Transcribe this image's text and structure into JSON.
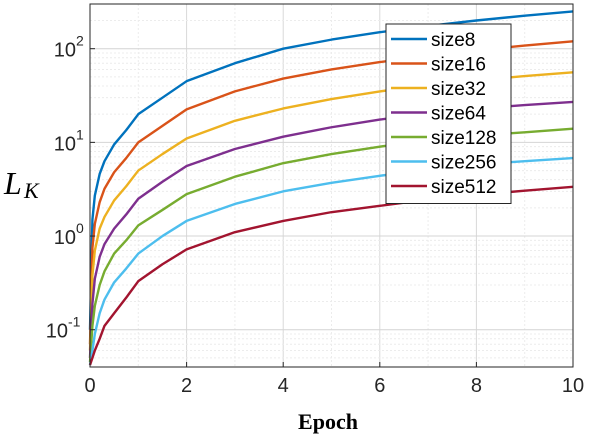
{
  "chart_data": {
    "type": "line",
    "xlabel": "Epoch",
    "ylabel": "L",
    "ylabel_subscript": "K",
    "xlim": [
      0,
      10
    ],
    "ylim": [
      0.04,
      300
    ],
    "yscale": "log",
    "grid": true,
    "legend_position": "top-right",
    "xticks": [
      "0",
      "2",
      "4",
      "6",
      "8",
      "10"
    ],
    "yticks": [
      {
        "base": "10",
        "exp": "-1"
      },
      {
        "base": "10",
        "exp": "0"
      },
      {
        "base": "10",
        "exp": "1"
      },
      {
        "base": "10",
        "exp": "2"
      }
    ],
    "x": [
      0,
      0.05,
      0.1,
      0.2,
      0.3,
      0.5,
      0.75,
      1,
      1.5,
      2,
      3,
      4,
      5,
      6,
      7,
      8,
      9,
      10
    ],
    "series": [
      {
        "name": "size8",
        "color": "#0072BD",
        "values": [
          0.1,
          1.5,
          2.7,
          4.6,
          6.3,
          9.5,
          13.5,
          20,
          30,
          45,
          70,
          100,
          125,
          150,
          175,
          200,
          225,
          250
        ]
      },
      {
        "name": "size16",
        "color": "#D95319",
        "values": [
          0.07,
          0.75,
          1.35,
          2.3,
          3.2,
          4.8,
          6.8,
          10,
          15,
          22.5,
          35,
          48,
          60,
          72,
          84,
          96,
          108,
          120
        ]
      },
      {
        "name": "size32",
        "color": "#EDB120",
        "values": [
          0.06,
          0.38,
          0.7,
          1.2,
          1.6,
          2.4,
          3.4,
          5,
          7.5,
          11,
          17,
          23,
          29,
          35,
          41,
          46,
          51,
          56
        ]
      },
      {
        "name": "size64",
        "color": "#7E2F8E",
        "values": [
          0.05,
          0.19,
          0.35,
          0.6,
          0.82,
          1.2,
          1.7,
          2.5,
          3.8,
          5.6,
          8.5,
          11.5,
          14.5,
          17.5,
          20.5,
          23,
          25,
          27
        ]
      },
      {
        "name": "size128",
        "color": "#77AC30",
        "values": [
          0.045,
          0.11,
          0.18,
          0.3,
          0.42,
          0.65,
          0.9,
          1.3,
          1.9,
          2.8,
          4.3,
          6,
          7.5,
          9,
          10.5,
          11.8,
          12.8,
          14
        ]
      },
      {
        "name": "size256",
        "color": "#4DBEEE",
        "values": [
          0.042,
          0.06,
          0.09,
          0.15,
          0.21,
          0.32,
          0.45,
          0.65,
          1,
          1.45,
          2.2,
          3,
          3.7,
          4.4,
          5.1,
          5.8,
          6.3,
          6.8
        ]
      },
      {
        "name": "size512",
        "color": "#A2142F",
        "values": [
          0.042,
          0.05,
          0.06,
          0.08,
          0.11,
          0.15,
          0.22,
          0.33,
          0.5,
          0.72,
          1.1,
          1.45,
          1.8,
          2.1,
          2.45,
          2.75,
          3.05,
          3.35
        ]
      }
    ]
  }
}
